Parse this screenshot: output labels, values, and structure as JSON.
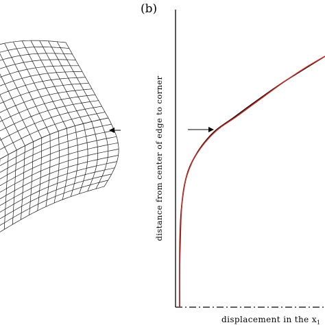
{
  "panel_label": "(b)",
  "x_axis_label": "displacement in the x",
  "x_axis_subscript": "1",
  "y_axis_label": "distance from center of edge to corner",
  "colors": {
    "black_curve": "#111111",
    "red_curve": "#cc2a22",
    "mesh": "#1a1a1a",
    "axes": "#000000"
  },
  "arrows": [
    "arrow-right-icon",
    "arrow-left-icon"
  ]
}
